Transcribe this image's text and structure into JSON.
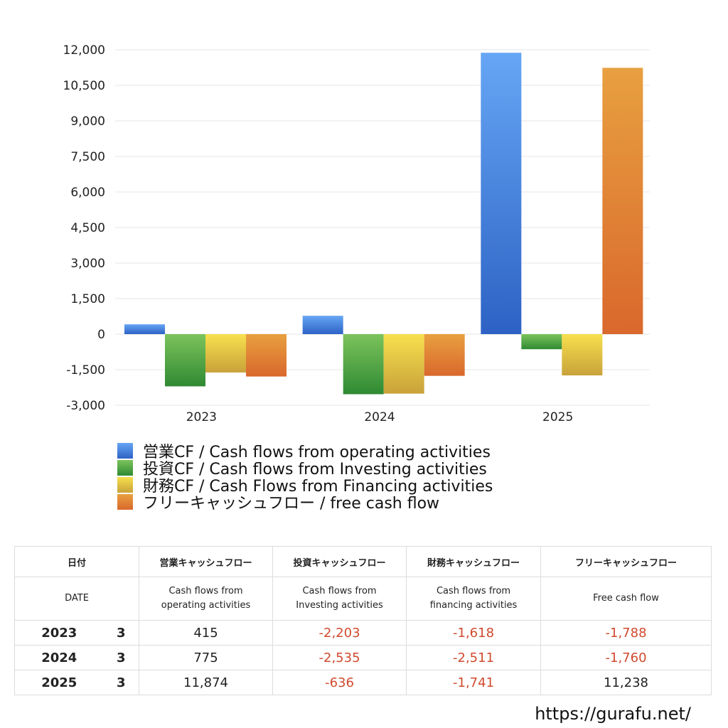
{
  "chart_data": {
    "type": "bar",
    "categories": [
      "2023",
      "2024",
      "2025"
    ],
    "series": [
      {
        "name": "営業CF / Cash flows from operating activities",
        "values": [
          415,
          775,
          11874
        ]
      },
      {
        "name": "投資CF / Cash flows from Investing activities",
        "values": [
          -2203,
          -2535,
          -636
        ]
      },
      {
        "name": "財務CF / Cash Flows from Financing activities",
        "values": [
          -1618,
          -2511,
          -1741
        ]
      },
      {
        "name": "フリーキャッシュフロー / free cash flow",
        "values": [
          -1788,
          -1760,
          11238
        ]
      }
    ],
    "ylim": [
      -3000,
      12000
    ],
    "yticks": [
      "12,000",
      "10,500",
      "9,000",
      "7,500",
      "6,000",
      "4,500",
      "3,000",
      "1,500",
      "0",
      "-1,500",
      "-3,000"
    ],
    "grid": true,
    "legend": "bottom",
    "colors": [
      "#3f7fe0",
      "#4ea43c",
      "#e2c23c",
      "#e07d32"
    ]
  },
  "table": {
    "header_jp": {
      "date": "日付",
      "operating": "営業キャッシュフロー",
      "investing": "投資キャッシュフロー",
      "financing": "財務キャッシュフロー",
      "free": "フリーキャッシュフロー"
    },
    "header_en": {
      "date": "DATE",
      "operating_1": "Cash flows from",
      "operating_2": "operating activities",
      "investing_1": "Cash flows from",
      "investing_2": "Investing activities",
      "financing_1": "Cash flows from",
      "financing_2": "financing activities",
      "free": "Free cash flow"
    },
    "rows": [
      {
        "year": "2023",
        "month": "3",
        "operating": "415",
        "investing": "-2,203",
        "financing": "-1,618",
        "free": "-1,788"
      },
      {
        "year": "2024",
        "month": "3",
        "operating": "775",
        "investing": "-2,535",
        "financing": "-2,511",
        "free": "-1,760"
      },
      {
        "year": "2025",
        "month": "3",
        "operating": "11,874",
        "investing": "-636",
        "financing": "-1,741",
        "free": "11,238"
      }
    ]
  },
  "footer": {
    "url": "https://gurafu.net/"
  }
}
